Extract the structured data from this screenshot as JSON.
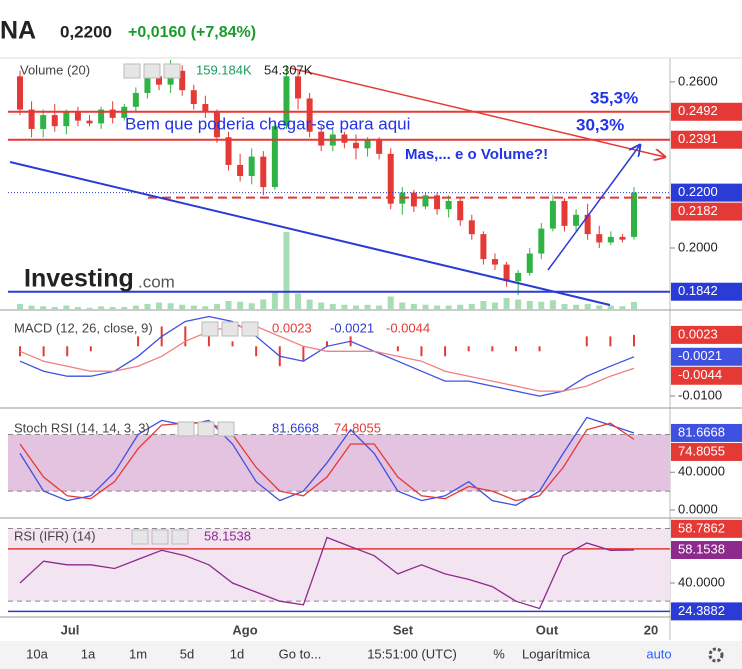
{
  "header": {
    "symbol": "NA",
    "price": "0,2200",
    "change": "+0,0160 (+7,84%)"
  },
  "chart_data": [
    {
      "type": "candlestick",
      "legend": "Volume (20)",
      "legend_values": [
        "159.184K",
        "54.307K"
      ],
      "watermark": [
        "Investing",
        ".com"
      ],
      "annotations": [
        "Bem que poderia chegar-se para aqui",
        "35,3%",
        "30,3%",
        "Mas,... e o Volume?!"
      ],
      "up_color": "#2fb344",
      "down_color": "#e53935",
      "volume_color": "#a8dcb4",
      "ylim": [
        0.1776,
        0.2679
      ],
      "yticks": [
        {
          "value": 0.26,
          "label": "0.2600"
        },
        {
          "value": 0.2,
          "label": "0.2000"
        }
      ],
      "levels": [
        {
          "value": 0.2492,
          "label": "0.2492",
          "color": "#e53935",
          "style": "solid"
        },
        {
          "value": 0.2391,
          "label": "0.2391",
          "color": "#e53935",
          "style": "solid"
        },
        {
          "value": 0.22,
          "label": "0.2200",
          "color": "#2b3bd6",
          "style": "dotted"
        },
        {
          "value": 0.2182,
          "label": "0.2182",
          "color": "#e53935",
          "style": "dashed"
        },
        {
          "value": 0.1842,
          "label": "0.1842",
          "color": "#2b3bd6",
          "style": "solid"
        }
      ],
      "candles": [
        [
          0.262,
          0.264,
          0.248,
          0.25
        ],
        [
          0.25,
          0.253,
          0.24,
          0.243
        ],
        [
          0.243,
          0.25,
          0.24,
          0.248
        ],
        [
          0.248,
          0.252,
          0.242,
          0.244
        ],
        [
          0.244,
          0.25,
          0.241,
          0.249
        ],
        [
          0.249,
          0.251,
          0.244,
          0.246
        ],
        [
          0.246,
          0.248,
          0.244,
          0.245
        ],
        [
          0.245,
          0.251,
          0.243,
          0.25
        ],
        [
          0.25,
          0.253,
          0.245,
          0.247
        ],
        [
          0.247,
          0.252,
          0.246,
          0.251
        ],
        [
          0.251,
          0.258,
          0.249,
          0.256
        ],
        [
          0.256,
          0.264,
          0.254,
          0.262
        ],
        [
          0.262,
          0.266,
          0.257,
          0.259
        ],
        [
          0.259,
          0.268,
          0.256,
          0.264
        ],
        [
          0.264,
          0.266,
          0.255,
          0.257
        ],
        [
          0.257,
          0.259,
          0.25,
          0.252
        ],
        [
          0.252,
          0.255,
          0.247,
          0.249
        ],
        [
          0.249,
          0.25,
          0.238,
          0.24
        ],
        [
          0.24,
          0.242,
          0.228,
          0.23
        ],
        [
          0.23,
          0.234,
          0.224,
          0.226
        ],
        [
          0.226,
          0.236,
          0.223,
          0.233
        ],
        [
          0.233,
          0.235,
          0.219,
          0.222
        ],
        [
          0.222,
          0.246,
          0.221,
          0.244
        ],
        [
          0.244,
          0.266,
          0.243,
          0.262
        ],
        [
          0.262,
          0.264,
          0.25,
          0.254
        ],
        [
          0.254,
          0.256,
          0.24,
          0.242
        ],
        [
          0.242,
          0.244,
          0.235,
          0.237
        ],
        [
          0.237,
          0.243,
          0.235,
          0.241
        ],
        [
          0.241,
          0.242,
          0.236,
          0.238
        ],
        [
          0.238,
          0.241,
          0.232,
          0.236
        ],
        [
          0.236,
          0.24,
          0.233,
          0.239
        ],
        [
          0.239,
          0.24,
          0.232,
          0.234
        ],
        [
          0.234,
          0.236,
          0.214,
          0.216
        ],
        [
          0.216,
          0.222,
          0.212,
          0.22
        ],
        [
          0.22,
          0.221,
          0.213,
          0.215
        ],
        [
          0.215,
          0.22,
          0.214,
          0.219
        ],
        [
          0.219,
          0.22,
          0.212,
          0.214
        ],
        [
          0.214,
          0.219,
          0.211,
          0.217
        ],
        [
          0.217,
          0.218,
          0.208,
          0.21
        ],
        [
          0.21,
          0.212,
          0.203,
          0.205
        ],
        [
          0.205,
          0.206,
          0.194,
          0.196
        ],
        [
          0.196,
          0.198,
          0.192,
          0.194
        ],
        [
          0.194,
          0.195,
          0.186,
          0.188
        ],
        [
          0.188,
          0.192,
          0.183,
          0.191
        ],
        [
          0.191,
          0.2,
          0.19,
          0.198
        ],
        [
          0.198,
          0.209,
          0.196,
          0.207
        ],
        [
          0.207,
          0.219,
          0.206,
          0.217
        ],
        [
          0.217,
          0.218,
          0.206,
          0.208
        ],
        [
          0.208,
          0.214,
          0.206,
          0.212
        ],
        [
          0.212,
          0.216,
          0.203,
          0.205
        ],
        [
          0.205,
          0.208,
          0.2,
          0.202
        ],
        [
          0.202,
          0.206,
          0.201,
          0.204
        ],
        [
          0.204,
          0.205,
          0.202,
          0.203
        ],
        [
          0.204,
          0.222,
          0.203,
          0.22
        ]
      ],
      "volume": [
        40,
        30,
        25,
        20,
        30,
        20,
        15,
        25,
        20,
        20,
        30,
        40,
        50,
        45,
        35,
        30,
        25,
        40,
        60,
        55,
        45,
        70,
        120,
        520,
        110,
        70,
        50,
        40,
        35,
        30,
        35,
        30,
        90,
        50,
        40,
        35,
        30,
        30,
        35,
        40,
        60,
        50,
        80,
        70,
        60,
        55,
        65,
        40,
        35,
        40,
        30,
        30,
        25,
        54
      ]
    },
    {
      "type": "macd",
      "legend": "MACD (12, 26, close, 9)",
      "ylim": [
        -0.0122,
        0.0069
      ],
      "yticks": [
        {
          "value": -0.01,
          "label": "-0.0100"
        }
      ],
      "series": [
        {
          "name": "histogram",
          "color": "#e53935",
          "values": [
            -0.002,
            -0.002,
            -0.002,
            -0.001,
            0,
            0.002,
            0.004,
            0.004,
            0.003,
            0.001,
            -0.002,
            -0.004,
            -0.003,
            0.001,
            0.002,
            0,
            -0.001,
            -0.002,
            -0.002,
            -0.001,
            -0.001,
            -0.001,
            -0.001,
            0,
            0.002,
            0.002,
            0.0023
          ]
        },
        {
          "name": "macd",
          "color": "#3f51e0",
          "values": [
            -0.003,
            -0.005,
            -0.006,
            -0.006,
            -0.005,
            -0.002,
            0.002,
            0.005,
            0.006,
            0.005,
            0.002,
            -0.002,
            -0.003,
            0,
            0.001,
            -0.001,
            -0.003,
            -0.005,
            -0.007,
            -0.007,
            -0.008,
            -0.009,
            -0.01,
            -0.009,
            -0.006,
            -0.004,
            -0.0021
          ]
        },
        {
          "name": "signal",
          "color": "#f28080",
          "values": [
            -0.001,
            -0.003,
            -0.004,
            -0.005,
            -0.005,
            -0.004,
            -0.002,
            0.001,
            0.003,
            0.004,
            0.004,
            0.002,
            0,
            -0.001,
            -0.001,
            -0.001,
            -0.002,
            -0.003,
            -0.005,
            -0.006,
            -0.007,
            -0.008,
            -0.009,
            -0.009,
            -0.008,
            -0.006,
            -0.0044
          ]
        }
      ]
    },
    {
      "type": "stoch",
      "legend": "Stoch RSI (14, 14, 3, 3)",
      "ylim": [
        -8.5,
        106
      ],
      "band": [
        20,
        80
      ],
      "yticks": [
        {
          "value": 40,
          "label": "40.0000"
        },
        {
          "value": 0,
          "label": "0.0000"
        }
      ],
      "series": [
        {
          "name": "K",
          "color": "#3f51e0",
          "values": [
            60,
            20,
            10,
            15,
            40,
            80,
            95,
            90,
            95,
            70,
            30,
            10,
            20,
            50,
            85,
            60,
            20,
            10,
            15,
            30,
            10,
            5,
            20,
            60,
            98,
            90,
            81.6668
          ]
        },
        {
          "name": "D",
          "color": "#e53935",
          "values": [
            70,
            35,
            15,
            12,
            30,
            65,
            90,
            92,
            93,
            80,
            45,
            20,
            15,
            35,
            70,
            70,
            35,
            15,
            12,
            25,
            20,
            10,
            15,
            45,
            85,
            92,
            74.8055
          ]
        }
      ]
    },
    {
      "type": "rsi",
      "legend": "RSI (IFR) (14)",
      "ylim": [
        22.4,
        74.65
      ],
      "band": [
        30,
        70
      ],
      "yticks": [
        {
          "value": 40,
          "label": "40.0000"
        }
      ],
      "levels": [
        {
          "value": 58.7862,
          "color": "#e53935"
        },
        {
          "value": 24.3882,
          "color": "#2b3bd6"
        }
      ],
      "series": [
        {
          "name": "RSI",
          "color": "#8e2a8e",
          "values": [
            40,
            52,
            50,
            50,
            48,
            53,
            58,
            55,
            50,
            40,
            35,
            30,
            28,
            65,
            60,
            55,
            45,
            50,
            45,
            42,
            38,
            30,
            26,
            55,
            62,
            58,
            58.1538
          ]
        }
      ]
    }
  ],
  "date_axis": [
    "Jul",
    "Ago",
    "Set",
    "Out",
    "20"
  ],
  "toolbar": [
    "10a",
    "1a",
    "1m",
    "5d",
    "1d",
    "Go to...",
    "15:51:00 (UTC)",
    "%",
    "Logarítmica",
    "auto"
  ]
}
